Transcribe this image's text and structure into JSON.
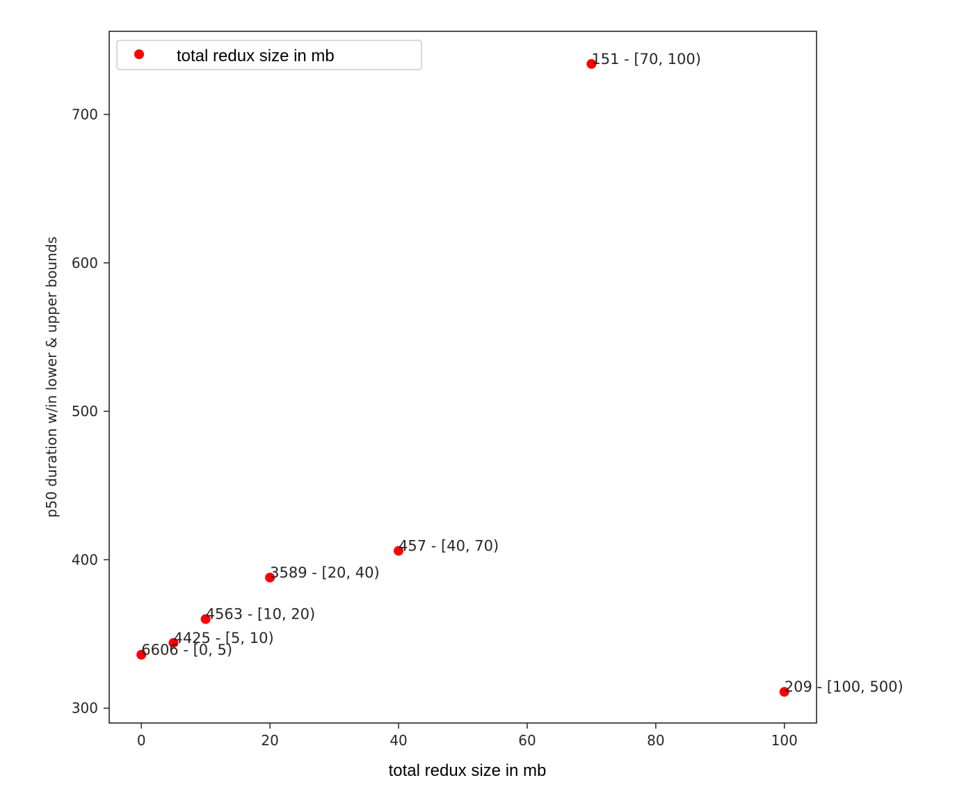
{
  "chart_data": {
    "type": "scatter",
    "title": "",
    "xlabel": "total redux size in mb",
    "ylabel": "p50 duration w/in lower & upper bounds",
    "xlim": [
      -5,
      105
    ],
    "ylim": [
      290,
      756
    ],
    "xticks": [
      0,
      20,
      40,
      60,
      80,
      100
    ],
    "yticks": [
      300,
      400,
      500,
      600,
      700
    ],
    "grid": false,
    "legend": {
      "position": "top-left",
      "entries": [
        "total redux size in mb"
      ]
    },
    "series": [
      {
        "name": "total redux size in mb",
        "color": "#ff0000",
        "points": [
          {
            "x": 0,
            "y": 336,
            "label": "6606 - [0, 5)"
          },
          {
            "x": 5,
            "y": 344,
            "label": "4425 - [5, 10)"
          },
          {
            "x": 10,
            "y": 360,
            "label": "4563 - [10, 20)"
          },
          {
            "x": 20,
            "y": 388,
            "label": "3589 - [20, 40)"
          },
          {
            "x": 40,
            "y": 406,
            "label": "457 - [40, 70)"
          },
          {
            "x": 70,
            "y": 734,
            "label": "151 - [70, 100)"
          },
          {
            "x": 100,
            "y": 311,
            "label": "209 - [100, 500)"
          }
        ]
      }
    ]
  }
}
